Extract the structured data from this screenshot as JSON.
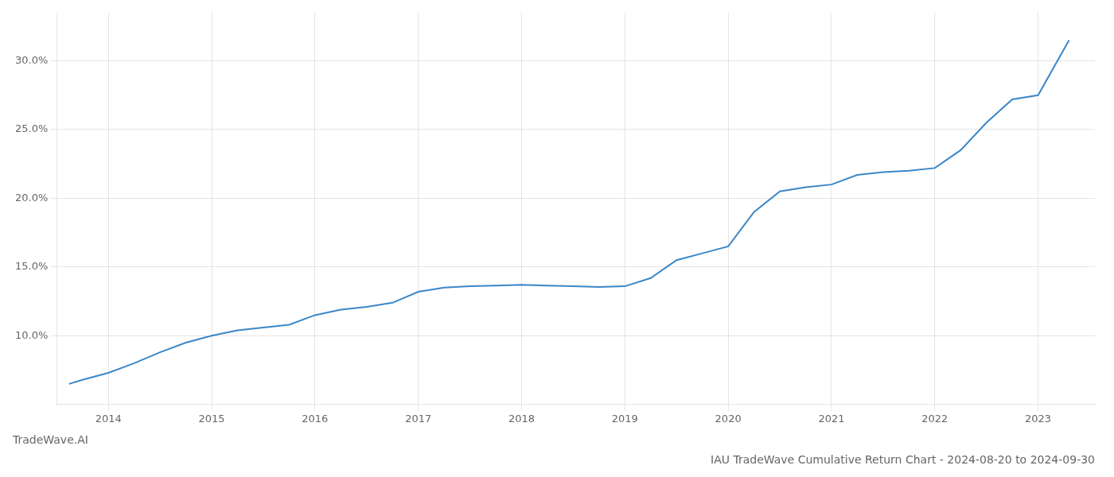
{
  "chart_data": {
    "type": "line",
    "title": "IAU TradeWave Cumulative Return Chart - 2024-08-20 to 2024-09-30",
    "subtitle": "TradeWave.AI",
    "x": [
      2013.62,
      2013.75,
      2014.0,
      2014.25,
      2014.5,
      2014.75,
      2015.0,
      2015.25,
      2015.5,
      2015.75,
      2016.0,
      2016.25,
      2016.5,
      2016.75,
      2017.0,
      2017.25,
      2017.5,
      2017.75,
      2018.0,
      2018.25,
      2018.5,
      2018.75,
      2019.0,
      2019.25,
      2019.5,
      2019.75,
      2020.0,
      2020.25,
      2020.5,
      2020.75,
      2021.0,
      2021.25,
      2021.5,
      2021.75,
      2022.0,
      2022.25,
      2022.5,
      2022.75,
      2023.0,
      2023.3
    ],
    "values": [
      6.5,
      6.8,
      7.3,
      8.0,
      8.8,
      9.5,
      10.0,
      10.4,
      10.6,
      10.8,
      11.5,
      11.9,
      12.1,
      12.4,
      13.2,
      13.5,
      13.6,
      13.65,
      13.7,
      13.65,
      13.6,
      13.55,
      13.6,
      14.2,
      15.5,
      16.0,
      16.5,
      19.0,
      20.5,
      20.8,
      21.0,
      21.7,
      21.9,
      22.0,
      22.2,
      23.5,
      25.5,
      27.2,
      27.5,
      31.5
    ],
    "color": "#3a87c8",
    "xlim": [
      2013.5,
      2023.55
    ],
    "xticks": [
      2014,
      2015,
      2016,
      2017,
      2018,
      2019,
      2020,
      2021,
      2022,
      2023
    ],
    "ylim": [
      5.0,
      33.5
    ],
    "yticks": [
      {
        "value": 10.0,
        "label": "10.0%"
      },
      {
        "value": 15.0,
        "label": "15.0%"
      },
      {
        "value": 20.0,
        "label": "20.0%"
      },
      {
        "value": 25.0,
        "label": "25.0%"
      },
      {
        "value": 30.0,
        "label": "30.0%"
      }
    ],
    "grid": true
  }
}
